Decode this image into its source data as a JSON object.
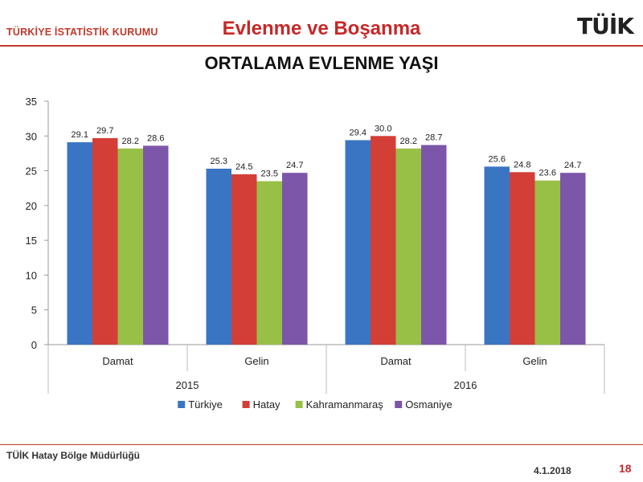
{
  "header": {
    "org": "TÜRKİYE İSTATİSTİK KURUMU",
    "title": "Evlenme ve Boşanma",
    "logo_text": "TÜİK"
  },
  "footer": {
    "office": "TÜİK Hatay Bölge Müdürlüğü",
    "date": "4.1.2018",
    "page": "18"
  },
  "chart_data": {
    "type": "bar",
    "title": "ORTALAMA EVLENME YAŞI",
    "groups": [
      {
        "label": "2015",
        "categories": [
          "Damat",
          "Gelin"
        ]
      },
      {
        "label": "2016",
        "categories": [
          "Damat",
          "Gelin"
        ]
      }
    ],
    "categories": [
      "Damat",
      "Gelin",
      "Damat",
      "Gelin"
    ],
    "series": [
      {
        "name": "Türkiye",
        "color": "#3a75c4",
        "values": [
          29.1,
          25.3,
          29.4,
          25.6
        ]
      },
      {
        "name": "Hatay",
        "color": "#d33f37",
        "values": [
          29.7,
          24.5,
          30.0,
          24.8
        ]
      },
      {
        "name": "Kahramanmaraş",
        "color": "#98c046",
        "values": [
          28.2,
          23.5,
          28.2,
          23.6
        ]
      },
      {
        "name": "Osmaniye",
        "color": "#7c56a8",
        "values": [
          28.6,
          24.7,
          28.7,
          24.7
        ]
      }
    ],
    "value_labels": [
      [
        "29.1",
        "25.3",
        "29.4",
        "25.6"
      ],
      [
        "29.7",
        "24.5",
        "30.0",
        "24.8"
      ],
      [
        "28.2",
        "23.5",
        "28.2",
        "23.6"
      ],
      [
        "28.6",
        "24.7",
        "28.7",
        "24.7"
      ]
    ],
    "y_ticks": [
      0,
      5,
      10,
      15,
      20,
      25,
      30,
      35
    ],
    "ylim": [
      0,
      35
    ],
    "grid": false,
    "legend": "bottom"
  }
}
